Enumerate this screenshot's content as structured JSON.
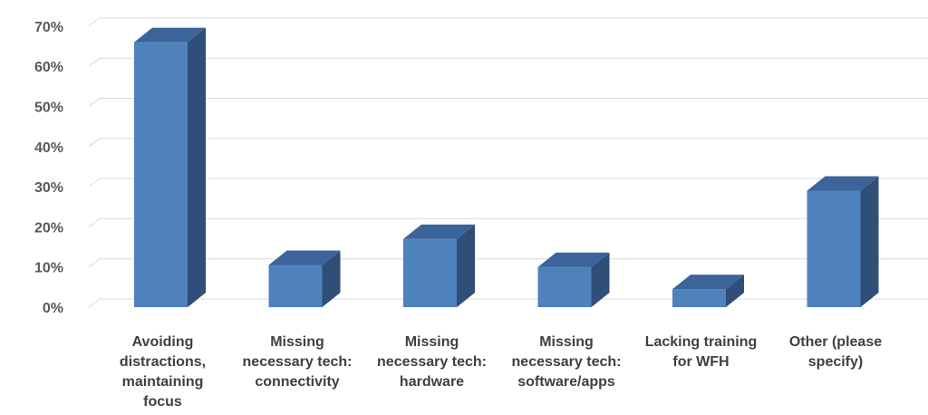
{
  "chart_data": {
    "type": "bar",
    "style": "3d-column",
    "title": "",
    "xlabel": "",
    "ylabel": "",
    "ylim": [
      0,
      0.7
    ],
    "y_ticks": [
      0,
      0.1,
      0.2,
      0.3,
      0.4,
      0.5,
      0.6,
      0.7
    ],
    "y_tick_labels": [
      "0%",
      "10%",
      "20%",
      "30%",
      "40%",
      "50%",
      "60%",
      "70%"
    ],
    "grid": true,
    "legend": "none",
    "categories": [
      "Avoiding distractions, maintaining focus",
      "Missing necessary tech: connectivity",
      "Missing necessary tech: hardware",
      "Missing necessary tech: software/apps",
      "Lacking training for WFH",
      "Other (please specify)"
    ],
    "category_lines": [
      [
        "Avoiding",
        "distractions,",
        "maintaining",
        "focus"
      ],
      [
        "Missing",
        "necessary tech:",
        "connectivity"
      ],
      [
        "Missing",
        "necessary tech:",
        "hardware"
      ],
      [
        "Missing",
        "necessary tech:",
        "software/apps"
      ],
      [
        "Lacking training",
        "for WFH"
      ],
      [
        "Other (please",
        "specify)"
      ]
    ],
    "values": [
      0.66,
      0.105,
      0.17,
      0.1,
      0.045,
      0.29
    ],
    "colors": {
      "front": "#4F81BD",
      "side": "#2F4F78",
      "top": "#3B649B",
      "grid": "#D9D9D9"
    }
  }
}
